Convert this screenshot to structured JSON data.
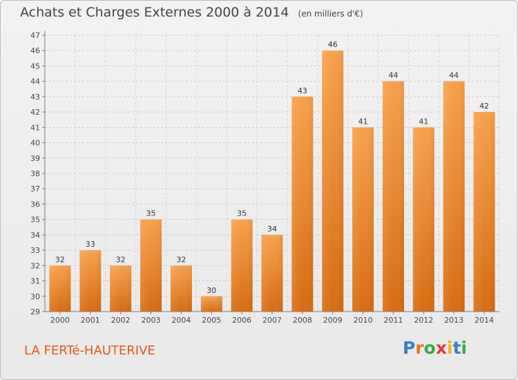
{
  "header": {
    "title": "Achats et Charges Externes 2000 à 2014",
    "subtitle": "(en milliers d'€)"
  },
  "footer": {
    "commune": "LA FERTé-HAUTERIVE",
    "logo_letters": [
      "P",
      "r",
      "o",
      "x",
      "i",
      "t",
      "i"
    ],
    "logo_colors": [
      "#3a7fc4",
      "#e8731a",
      "#3aa84a",
      "#e03a3a",
      "#f0b020",
      "#3a7fc4",
      "#3aa84a"
    ]
  },
  "chart_data": {
    "type": "bar",
    "title": "Achats et Charges Externes 2000 à 2014",
    "subtitle": "(en milliers d'€)",
    "xlabel": "",
    "ylabel": "",
    "categories": [
      "2000",
      "2001",
      "2002",
      "2003",
      "2004",
      "2005",
      "2006",
      "2007",
      "2008",
      "2009",
      "2010",
      "2011",
      "2012",
      "2013",
      "2014"
    ],
    "values": [
      32,
      33,
      32,
      35,
      32,
      30,
      35,
      34,
      43,
      46,
      41,
      44,
      41,
      44,
      42
    ],
    "ylim": [
      29,
      47
    ],
    "yticks": [
      "29",
      "30",
      "31",
      "32",
      "33",
      "34",
      "35",
      "36",
      "37",
      "38",
      "39",
      "40",
      "41",
      "42",
      "43",
      "44",
      "45",
      "46",
      "47"
    ],
    "grid": true,
    "legend": "none",
    "bar_color": "#f0913a"
  }
}
